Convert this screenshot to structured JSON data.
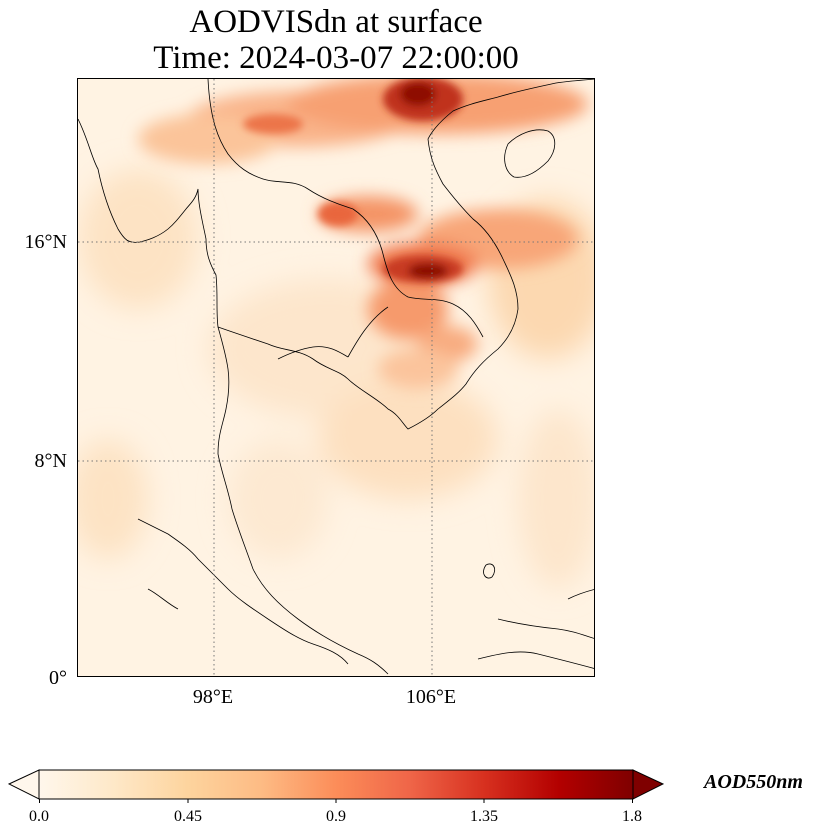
{
  "title_line1": "AODVISdn at surface",
  "title_line2": "Time: 2024-03-07 22:00:00",
  "map": {
    "lat_labels": [
      "16°N",
      "8°N",
      "0°"
    ],
    "lon_labels": [
      "98°E",
      "106°E"
    ]
  },
  "colorbar": {
    "label": "AOD550nm",
    "ticks": [
      "0.0",
      "0.45",
      "0.9",
      "1.35",
      "1.8"
    ],
    "range": [
      0.0,
      1.8
    ],
    "colormap": "OrRd",
    "extend": "both",
    "colors": [
      "#fff7ec",
      "#fee8c8",
      "#fdd49e",
      "#fdbb84",
      "#fc8d59",
      "#ef6548",
      "#d7301f",
      "#b30000",
      "#7f0000"
    ]
  }
}
